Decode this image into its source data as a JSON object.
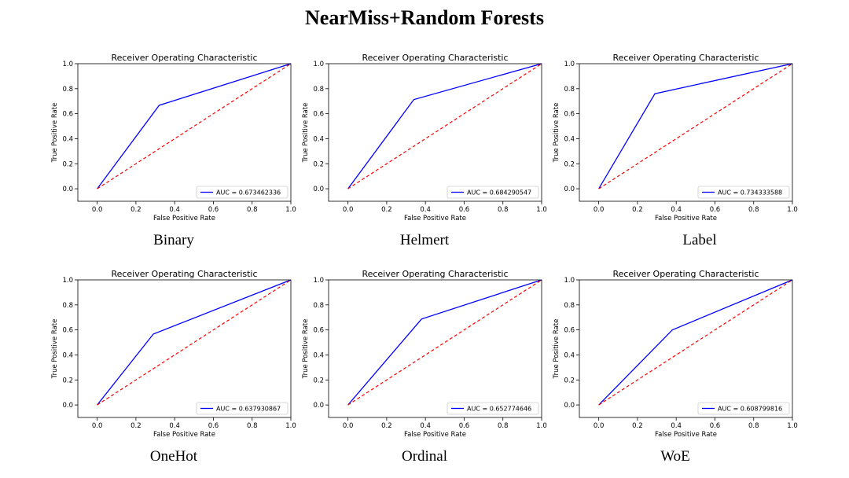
{
  "page_title": "NearMiss+Random Forests",
  "style": {
    "roc_color": "#0000ff",
    "diag_color": "#ff0000",
    "axes_color": "#000000"
  },
  "chart_data": [
    {
      "type": "line",
      "caption": "Binary",
      "title": "Receiver Operating Characteristic",
      "xlabel": "False Positive Rate",
      "ylabel": "True Positive Rate",
      "xlim": [
        -0.1,
        1.0
      ],
      "ylim": [
        -0.1,
        1.0
      ],
      "xticks": [
        "0.0",
        "0.2",
        "0.4",
        "0.6",
        "0.8",
        "1.0"
      ],
      "yticks": [
        "0.0",
        "0.2",
        "0.4",
        "0.6",
        "0.8",
        "1.0"
      ],
      "legend_position": "lower-right",
      "series": [
        {
          "name": "AUC = 0.673462336",
          "x": [
            0,
            0.32,
            1
          ],
          "y": [
            0,
            0.667,
            1
          ]
        },
        {
          "x": [
            0,
            1
          ],
          "y": [
            0,
            1
          ],
          "style": "dashed"
        }
      ]
    },
    {
      "type": "line",
      "caption": "Helmert",
      "title": "Receiver Operating Characteristic",
      "xlabel": "False Positive Rate",
      "ylabel": "True Positive Rate",
      "xlim": [
        -0.1,
        1.0
      ],
      "ylim": [
        -0.1,
        1.0
      ],
      "xticks": [
        "0.0",
        "0.2",
        "0.4",
        "0.6",
        "0.8",
        "1.0"
      ],
      "yticks": [
        "0.0",
        "0.2",
        "0.4",
        "0.6",
        "0.8",
        "1.0"
      ],
      "legend_position": "lower-right",
      "series": [
        {
          "name": "AUC = 0.684290547",
          "x": [
            0,
            0.34,
            1
          ],
          "y": [
            0,
            0.713,
            1
          ]
        },
        {
          "x": [
            0,
            1
          ],
          "y": [
            0,
            1
          ],
          "style": "dashed"
        }
      ]
    },
    {
      "type": "line",
      "caption": "Label",
      "title": "Receiver Operating Characteristic",
      "xlabel": "False Positive Rate",
      "ylabel": "True Positive Rate",
      "xlim": [
        -0.1,
        1.0
      ],
      "ylim": [
        -0.1,
        1.0
      ],
      "xticks": [
        "0.0",
        "0.2",
        "0.4",
        "0.6",
        "0.8",
        "1.0"
      ],
      "yticks": [
        "0.0",
        "0.2",
        "0.4",
        "0.6",
        "0.8",
        "1.0"
      ],
      "legend_position": "lower-right",
      "series": [
        {
          "name": "AUC = 0.734333588",
          "x": [
            0,
            0.29,
            1
          ],
          "y": [
            0,
            0.76,
            1
          ]
        },
        {
          "x": [
            0,
            1
          ],
          "y": [
            0,
            1
          ],
          "style": "dashed"
        }
      ]
    },
    {
      "type": "line",
      "caption": "OneHot",
      "title": "Receiver Operating Characteristic",
      "xlabel": "False Positive Rate",
      "ylabel": "True Positive Rate",
      "xlim": [
        -0.1,
        1.0
      ],
      "ylim": [
        -0.1,
        1.0
      ],
      "xticks": [
        "0.0",
        "0.2",
        "0.4",
        "0.6",
        "0.8",
        "1.0"
      ],
      "yticks": [
        "0.0",
        "0.2",
        "0.4",
        "0.6",
        "0.8",
        "1.0"
      ],
      "legend_position": "lower-right",
      "series": [
        {
          "name": "AUC = 0.637930867",
          "x": [
            0,
            0.29,
            1
          ],
          "y": [
            0,
            0.567,
            1
          ]
        },
        {
          "x": [
            0,
            1
          ],
          "y": [
            0,
            1
          ],
          "style": "dashed"
        }
      ]
    },
    {
      "type": "line",
      "caption": "Ordinal",
      "title": "Receiver Operating Characteristic",
      "xlabel": "False Positive Rate",
      "ylabel": "True Positive Rate",
      "xlim": [
        -0.1,
        1.0
      ],
      "ylim": [
        -0.1,
        1.0
      ],
      "xticks": [
        "0.0",
        "0.2",
        "0.4",
        "0.6",
        "0.8",
        "1.0"
      ],
      "yticks": [
        "0.0",
        "0.2",
        "0.4",
        "0.6",
        "0.8",
        "1.0"
      ],
      "legend_position": "lower-right",
      "series": [
        {
          "name": "AUC = 0.652774646",
          "x": [
            0,
            0.38,
            1
          ],
          "y": [
            0,
            0.687,
            1
          ]
        },
        {
          "x": [
            0,
            1
          ],
          "y": [
            0,
            1
          ],
          "style": "dashed"
        }
      ]
    },
    {
      "type": "line",
      "caption": "WoE",
      "title": "Receiver Operating Characteristic",
      "xlabel": "False Positive Rate",
      "ylabel": "True Positive Rate",
      "xlim": [
        -0.1,
        1.0
      ],
      "ylim": [
        -0.1,
        1.0
      ],
      "xticks": [
        "0.0",
        "0.2",
        "0.4",
        "0.6",
        "0.8",
        "1.0"
      ],
      "yticks": [
        "0.0",
        "0.2",
        "0.4",
        "0.6",
        "0.8",
        "1.0"
      ],
      "legend_position": "lower-right",
      "series": [
        {
          "name": "AUC = 0.608799816",
          "x": [
            0,
            0.38,
            1
          ],
          "y": [
            0,
            0.6,
            1
          ]
        },
        {
          "x": [
            0,
            1
          ],
          "y": [
            0,
            1
          ],
          "style": "dashed"
        }
      ]
    }
  ]
}
